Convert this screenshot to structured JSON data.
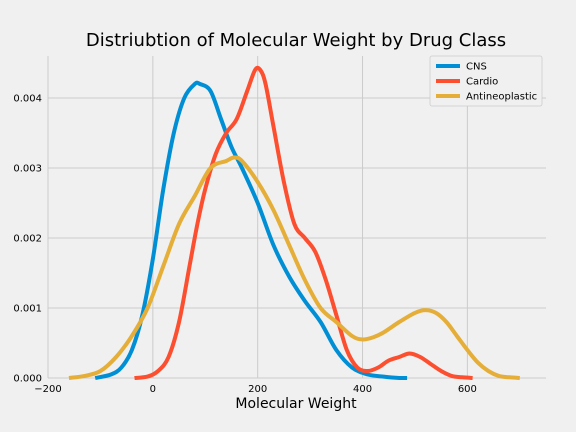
{
  "chart_data": {
    "type": "line",
    "title": "Distriubtion of Molecular Weight by Drug Class",
    "xlabel": "Molecular Weight",
    "ylabel": "",
    "xlim": [
      -200,
      750
    ],
    "ylim": [
      0,
      0.0046
    ],
    "xticks": [
      -200,
      0,
      200,
      400,
      600
    ],
    "yticks": [
      0,
      0.001,
      0.002,
      0.003,
      0.004
    ],
    "xtick_labels": [
      "−200",
      "0",
      "200",
      "400",
      "600"
    ],
    "ytick_labels": [
      "0.000",
      "0.001",
      "0.002",
      "0.003",
      "0.004"
    ],
    "grid": true,
    "legend_position": "top-right",
    "series": [
      {
        "name": "CNS",
        "color": "#008fd5",
        "x": [
          -110,
          -80,
          -60,
          -40,
          -20,
          0,
          20,
          40,
          60,
          80,
          90,
          110,
          130,
          150,
          170,
          200,
          230,
          260,
          290,
          320,
          350,
          380,
          410,
          440,
          470,
          485
        ],
        "y": [
          0.0,
          5e-05,
          0.00015,
          0.0004,
          0.0009,
          0.0017,
          0.0027,
          0.0035,
          0.004,
          0.0042,
          0.0042,
          0.0041,
          0.0037,
          0.0033,
          0.003,
          0.0025,
          0.0019,
          0.00145,
          0.0011,
          0.0008,
          0.0004,
          0.00015,
          5e-05,
          2e-05,
          0.0,
          0.0
        ]
      },
      {
        "name": "Cardio",
        "color": "#fc4f30",
        "x": [
          -35,
          -10,
          10,
          30,
          50,
          70,
          85,
          100,
          120,
          140,
          160,
          180,
          195,
          205,
          215,
          230,
          250,
          270,
          290,
          310,
          330,
          350,
          370,
          390,
          410,
          430,
          450,
          470,
          490,
          510,
          530,
          550,
          570,
          590,
          610
        ],
        "y": [
          0.0,
          2e-05,
          0.0001,
          0.0003,
          0.0008,
          0.0016,
          0.0022,
          0.0027,
          0.0032,
          0.0035,
          0.0037,
          0.0041,
          0.0044,
          0.0044,
          0.0042,
          0.0036,
          0.0028,
          0.0022,
          0.002,
          0.0018,
          0.0014,
          0.0009,
          0.0004,
          0.00015,
          0.0001,
          0.00015,
          0.00025,
          0.0003,
          0.00035,
          0.0003,
          0.0002,
          0.0001,
          3e-05,
          1e-05,
          0.0
        ]
      },
      {
        "name": "Antineoplastic",
        "color": "#e5ae38",
        "x": [
          -160,
          -130,
          -100,
          -70,
          -40,
          -10,
          20,
          50,
          80,
          110,
          140,
          155,
          170,
          200,
          230,
          260,
          290,
          320,
          350,
          380,
          400,
          420,
          440,
          470,
          500,
          520,
          540,
          560,
          580,
          600,
          620,
          640,
          660,
          680,
          700
        ],
        "y": [
          0.0,
          3e-05,
          0.0001,
          0.0003,
          0.0006,
          0.001,
          0.0016,
          0.0022,
          0.0026,
          0.003,
          0.0031,
          0.00315,
          0.0031,
          0.0028,
          0.0024,
          0.0019,
          0.0014,
          0.001,
          0.0008,
          0.0006,
          0.00055,
          0.00058,
          0.00065,
          0.0008,
          0.00093,
          0.00097,
          0.00093,
          0.0008,
          0.0006,
          0.0004,
          0.00022,
          0.0001,
          3e-05,
          1e-05,
          0.0
        ]
      }
    ]
  }
}
